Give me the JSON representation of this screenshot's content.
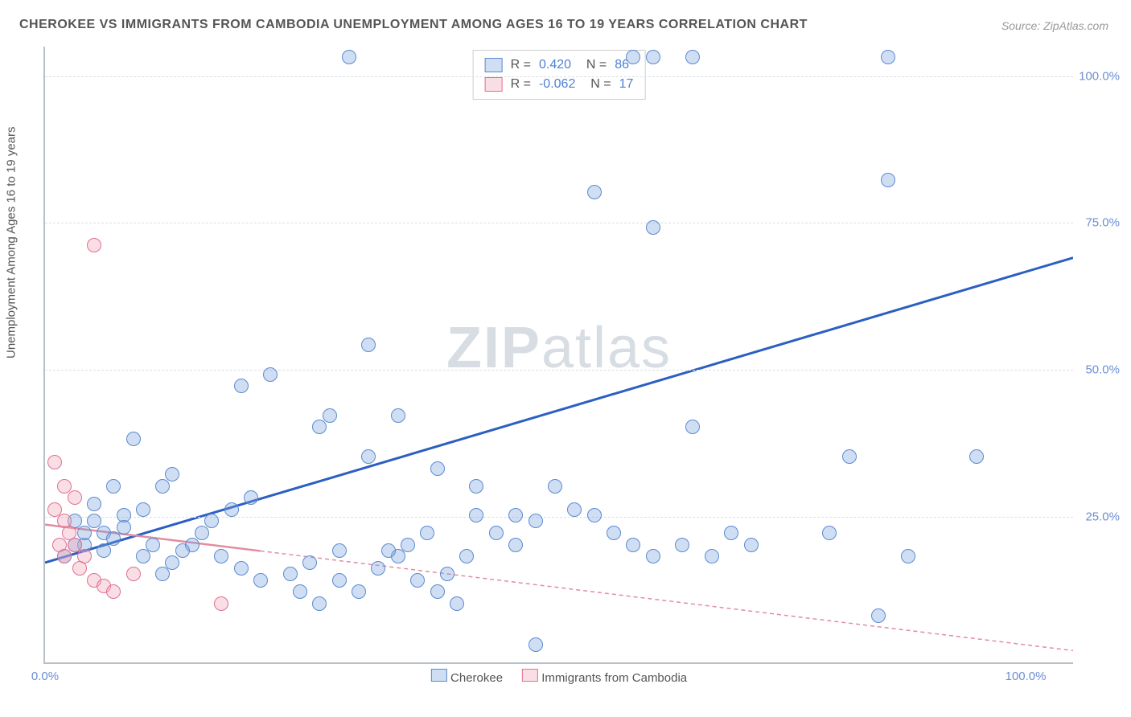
{
  "title": "CHEROKEE VS IMMIGRANTS FROM CAMBODIA UNEMPLOYMENT AMONG AGES 16 TO 19 YEARS CORRELATION CHART",
  "source": "Source: ZipAtlas.com",
  "ylabel": "Unemployment Among Ages 16 to 19 years",
  "watermark_zip": "ZIP",
  "watermark_atlas": "atlas",
  "chart": {
    "type": "scatter",
    "xlim": [
      0,
      105
    ],
    "ylim": [
      0,
      105
    ],
    "xticks": [
      {
        "pos": 0,
        "label": "0.0%"
      },
      {
        "pos": 100,
        "label": "100.0%"
      }
    ],
    "yticks": [
      {
        "pos": 25,
        "label": "25.0%"
      },
      {
        "pos": 50,
        "label": "50.0%"
      },
      {
        "pos": 75,
        "label": "75.0%"
      },
      {
        "pos": 100,
        "label": "100.0%"
      }
    ],
    "gridlines_y": [
      25,
      50,
      75,
      100
    ],
    "background_color": "#ffffff",
    "grid_color": "#dcdfe3",
    "axis_color": "#b9c0c7",
    "series": [
      {
        "name": "Cherokee",
        "color_fill": "rgba(120,160,220,0.35)",
        "color_stroke": "#5b8ad0",
        "marker_size": 18,
        "R": "0.420",
        "N": "86",
        "trendline": {
          "x1": 0,
          "y1": 17,
          "x2": 105,
          "y2": 69,
          "stroke": "#2b5fc2",
          "width": 3,
          "dash": "none"
        },
        "points": [
          [
            31,
            103
          ],
          [
            60,
            103
          ],
          [
            62,
            103
          ],
          [
            66,
            103
          ],
          [
            86,
            103
          ],
          [
            56,
            80
          ],
          [
            62,
            74
          ],
          [
            86,
            82
          ],
          [
            33,
            54
          ],
          [
            20,
            47
          ],
          [
            23,
            49
          ],
          [
            28,
            40
          ],
          [
            29,
            42
          ],
          [
            36,
            42
          ],
          [
            33,
            35
          ],
          [
            40,
            33
          ],
          [
            66,
            40
          ],
          [
            82,
            35
          ],
          [
            44,
            30
          ],
          [
            48,
            25
          ],
          [
            50,
            24
          ],
          [
            12,
            30
          ],
          [
            13,
            32
          ],
          [
            10,
            26
          ],
          [
            8,
            25
          ],
          [
            6,
            22
          ],
          [
            4,
            20
          ],
          [
            3,
            24
          ],
          [
            5,
            27
          ],
          [
            7,
            30
          ],
          [
            9,
            38
          ],
          [
            15,
            20
          ],
          [
            18,
            18
          ],
          [
            20,
            16
          ],
          [
            22,
            14
          ],
          [
            25,
            15
          ],
          [
            27,
            17
          ],
          [
            30,
            14
          ],
          [
            32,
            12
          ],
          [
            34,
            16
          ],
          [
            36,
            18
          ],
          [
            38,
            14
          ],
          [
            40,
            12
          ],
          [
            42,
            10
          ],
          [
            44,
            25
          ],
          [
            46,
            22
          ],
          [
            48,
            20
          ],
          [
            50,
            3
          ],
          [
            52,
            30
          ],
          [
            54,
            26
          ],
          [
            56,
            25
          ],
          [
            58,
            22
          ],
          [
            60,
            20
          ],
          [
            62,
            18
          ],
          [
            65,
            20
          ],
          [
            68,
            18
          ],
          [
            70,
            22
          ],
          [
            72,
            20
          ],
          [
            80,
            22
          ],
          [
            85,
            8
          ],
          [
            88,
            18
          ],
          [
            95,
            35
          ],
          [
            2,
            18
          ],
          [
            3,
            20
          ],
          [
            4,
            22
          ],
          [
            5,
            24
          ],
          [
            6,
            19
          ],
          [
            7,
            21
          ],
          [
            8,
            23
          ],
          [
            10,
            18
          ],
          [
            11,
            20
          ],
          [
            12,
            15
          ],
          [
            13,
            17
          ],
          [
            14,
            19
          ],
          [
            16,
            22
          ],
          [
            17,
            24
          ],
          [
            19,
            26
          ],
          [
            21,
            28
          ],
          [
            26,
            12
          ],
          [
            28,
            10
          ],
          [
            30,
            19
          ],
          [
            35,
            19
          ],
          [
            37,
            20
          ],
          [
            39,
            22
          ],
          [
            41,
            15
          ],
          [
            43,
            18
          ]
        ]
      },
      {
        "name": "Immigrants from Cambodia",
        "color_fill": "rgba(240,160,180,0.35)",
        "color_stroke": "#e07090",
        "marker_size": 18,
        "R": "-0.062",
        "N": "17",
        "trendline": {
          "x1": 0,
          "y1": 23.5,
          "x2": 105,
          "y2": 2,
          "stroke": "#e28ca0",
          "width": 1.5,
          "dash": "5,4"
        },
        "trendline_solid_end": 22,
        "points": [
          [
            5,
            71
          ],
          [
            1,
            34
          ],
          [
            2,
            30
          ],
          [
            3,
            28
          ],
          [
            1,
            26
          ],
          [
            2,
            24
          ],
          [
            2.5,
            22
          ],
          [
            3,
            20
          ],
          [
            4,
            18
          ],
          [
            1.5,
            20
          ],
          [
            2,
            18
          ],
          [
            3.5,
            16
          ],
          [
            5,
            14
          ],
          [
            6,
            13
          ],
          [
            7,
            12
          ],
          [
            9,
            15
          ],
          [
            18,
            10
          ]
        ]
      }
    ]
  },
  "legend_top": {
    "rows": [
      {
        "swatch": "blue",
        "r_label": "R =",
        "r_val": "0.420",
        "n_label": "N =",
        "n_val": "86"
      },
      {
        "swatch": "pink",
        "r_label": "R =",
        "r_val": "-0.062",
        "n_label": "N =",
        "n_val": "17"
      }
    ]
  },
  "legend_bottom": {
    "items": [
      {
        "swatch": "blue",
        "label": "Cherokee"
      },
      {
        "swatch": "pink",
        "label": "Immigrants from Cambodia"
      }
    ]
  }
}
